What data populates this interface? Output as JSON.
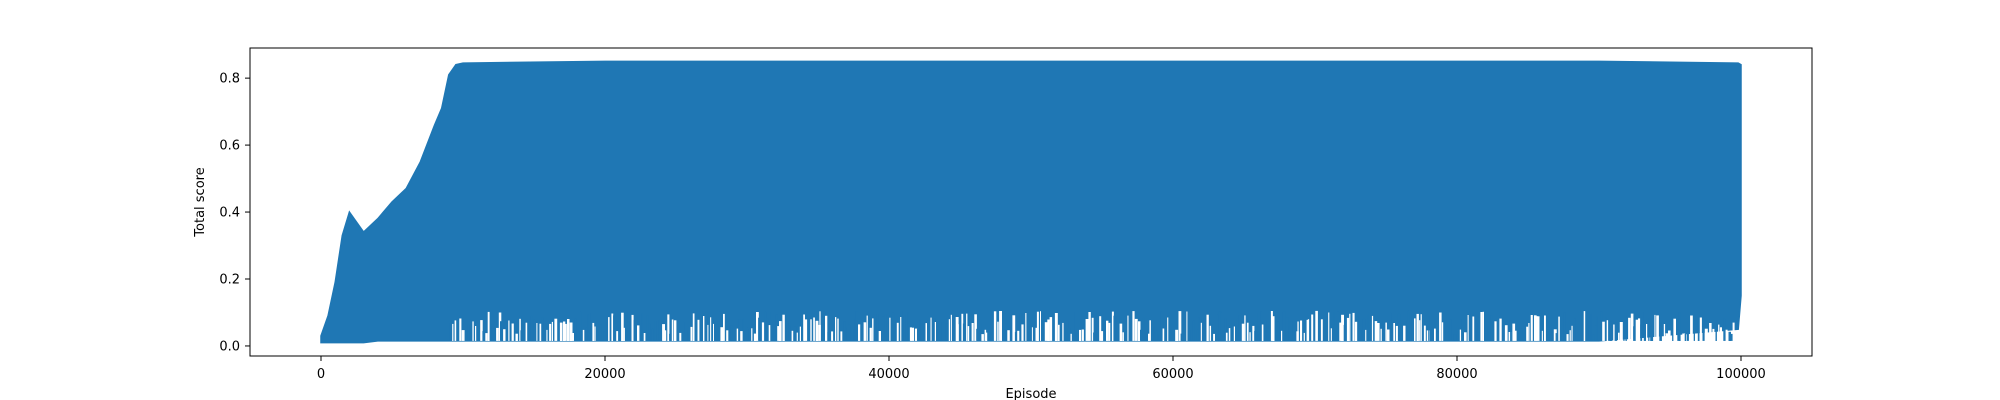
{
  "chart_data": {
    "type": "line",
    "title": "",
    "xlabel": "Episode",
    "ylabel": "Total score",
    "xlim": [
      -5000,
      105000
    ],
    "ylim": [
      -0.03,
      0.89
    ],
    "x_ticks": [
      0,
      20000,
      40000,
      60000,
      80000,
      100000
    ],
    "x_tick_labels": [
      "0",
      "20000",
      "40000",
      "60000",
      "80000",
      "100000"
    ],
    "y_ticks": [
      0.0,
      0.2,
      0.4,
      0.6,
      0.8
    ],
    "y_tick_labels": [
      "0.0",
      "0.2",
      "0.4",
      "0.6",
      "0.8"
    ],
    "grid": false,
    "legend": "none",
    "series": [
      {
        "color": "#1f77b4",
        "x": [
          0,
          500,
          1000,
          1500,
          2000,
          3000,
          4000,
          5000,
          6000,
          7000,
          8000,
          8500,
          9000,
          9500,
          10000,
          20000,
          30000,
          40000,
          50000,
          60000,
          70000,
          80000,
          90000,
          99800,
          100000
        ],
        "y_upper": [
          0.03,
          0.09,
          0.19,
          0.33,
          0.4,
          0.34,
          0.38,
          0.43,
          0.47,
          0.55,
          0.66,
          0.71,
          0.81,
          0.84,
          0.845,
          0.85,
          0.85,
          0.85,
          0.85,
          0.85,
          0.85,
          0.85,
          0.85,
          0.845,
          0.84
        ],
        "y_lower": [
          0.01,
          0.01,
          0.01,
          0.01,
          0.01,
          0.01,
          0.015,
          0.015,
          0.015,
          0.015,
          0.015,
          0.015,
          0.015,
          0.015,
          0.015,
          0.015,
          0.015,
          0.015,
          0.015,
          0.015,
          0.015,
          0.015,
          0.015,
          0.05,
          0.15
        ]
      }
    ]
  }
}
